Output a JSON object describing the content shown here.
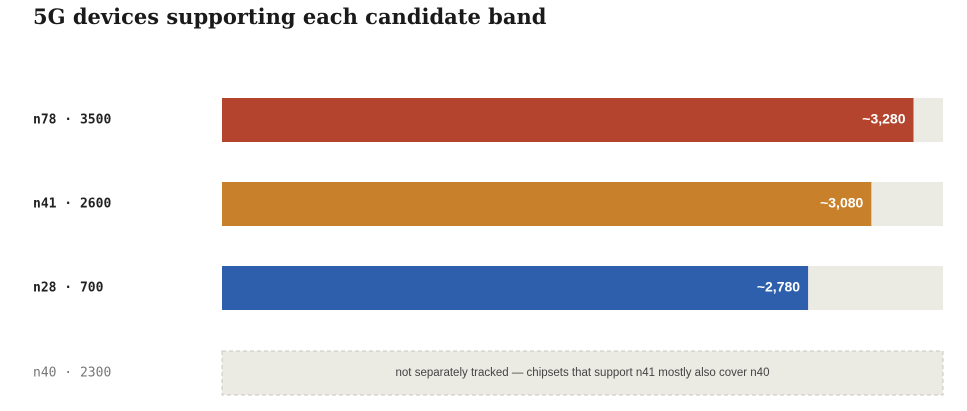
{
  "chart_data": {
    "type": "hbar",
    "title": "5G devices supporting each candidate band",
    "categories": [
      "n78 · 3500",
      "n41 · 2600",
      "n28 · 700",
      "n40 · 2300"
    ],
    "values": [
      3280,
      3080,
      2780,
      null
    ],
    "value_labels": [
      "~3,280",
      "~3,080",
      "~2,780",
      null
    ],
    "colors": [
      "#b4442d",
      "#c9802b",
      "#2e5fad",
      null
    ],
    "track_color": "#ebeae3",
    "xlim": [
      0,
      3420
    ],
    "annotation": "not separately tracked — chipsets that support n41 mostly also cover n40"
  }
}
